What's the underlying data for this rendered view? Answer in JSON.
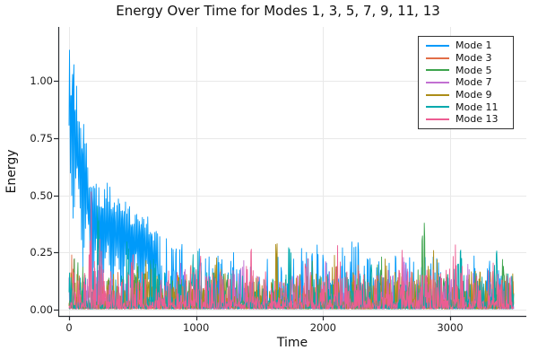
{
  "page": {
    "background": "#FFFFFF"
  },
  "colors": {
    "grid": "#E9E9E9",
    "axis": "#2A2E33",
    "text": "#111111"
  },
  "chart_data": {
    "type": "line",
    "title": "Energy Over Time for Modes 1, 3, 5, 7, 9, 11, 13",
    "xlabel": "Time",
    "ylabel": "Energy",
    "xlim": [
      0,
      3500
    ],
    "ylim": [
      0,
      1.22
    ],
    "grid": true,
    "legend": {
      "position": "top-right",
      "border_color": "#333333",
      "background": "#FFFFFF"
    },
    "x_ticks": [
      {
        "value": 0,
        "label": "0"
      },
      {
        "value": 1000,
        "label": "1000"
      },
      {
        "value": 2000,
        "label": "2000"
      },
      {
        "value": 3000,
        "label": "3000"
      }
    ],
    "y_ticks": [
      {
        "value": 0.0,
        "label": "0.00"
      },
      {
        "value": 0.25,
        "label": "0.25"
      },
      {
        "value": 0.5,
        "label": "0.50"
      },
      {
        "value": 0.75,
        "label": "0.75"
      },
      {
        "value": 1.0,
        "label": "1.00"
      }
    ],
    "series": [
      {
        "name": "Mode 1",
        "color": "#009AFA",
        "style": "decaying_oscillation",
        "seed": 11,
        "period": 22,
        "osc_until": 700,
        "base": 0.1,
        "peak": {
          "time": 20,
          "value": 1.19
        },
        "envelope": [
          [
            0,
            1.2
          ],
          [
            25,
            1.19
          ],
          [
            50,
            1.08
          ],
          [
            80,
            0.97
          ],
          [
            110,
            0.88
          ],
          [
            140,
            0.74
          ],
          [
            170,
            0.62
          ],
          [
            210,
            0.56
          ],
          [
            260,
            0.53
          ],
          [
            320,
            0.57
          ],
          [
            380,
            0.52
          ],
          [
            450,
            0.49
          ],
          [
            520,
            0.46
          ],
          [
            600,
            0.43
          ],
          [
            700,
            0.34
          ],
          [
            800,
            0.3
          ],
          [
            900,
            0.34
          ],
          [
            1000,
            0.27
          ],
          [
            1150,
            0.24
          ],
          [
            1300,
            0.27
          ],
          [
            1450,
            0.22
          ],
          [
            1600,
            0.24
          ],
          [
            1750,
            0.28
          ],
          [
            1900,
            0.31
          ],
          [
            2000,
            0.29
          ],
          [
            2100,
            0.26
          ],
          [
            2250,
            0.3
          ],
          [
            2400,
            0.24
          ],
          [
            2550,
            0.26
          ],
          [
            2700,
            0.23
          ],
          [
            2850,
            0.25
          ],
          [
            3000,
            0.22
          ],
          [
            3150,
            0.24
          ],
          [
            3300,
            0.22
          ],
          [
            3500,
            0.2
          ]
        ],
        "events": []
      },
      {
        "name": "Mode 3",
        "color": "#E26E47",
        "style": "noise",
        "seed": 23,
        "base": 0.13,
        "envelope": [
          [
            0,
            0.3
          ],
          [
            3500,
            0.19
          ]
        ],
        "events": [
          [
            40,
            0.17,
            50
          ],
          [
            420,
            0.07,
            60
          ],
          [
            950,
            0.07,
            50
          ],
          [
            1500,
            0.06,
            50
          ],
          [
            2250,
            0.08,
            50
          ],
          [
            2900,
            0.07,
            45
          ],
          [
            3350,
            0.06,
            40
          ]
        ]
      },
      {
        "name": "Mode 5",
        "color": "#3DA44D",
        "style": "noise",
        "seed": 37,
        "base": 0.14,
        "envelope": [
          [
            0,
            0.3
          ],
          [
            2800,
            0.42
          ],
          [
            3500,
            0.2
          ]
        ],
        "events": [
          [
            70,
            0.16,
            40
          ],
          [
            520,
            0.1,
            45
          ],
          [
            1250,
            0.1,
            40
          ],
          [
            1900,
            0.08,
            40
          ],
          [
            2450,
            0.1,
            40
          ],
          [
            2800,
            0.28,
            40
          ],
          [
            3420,
            0.14,
            25
          ]
        ]
      },
      {
        "name": "Mode 7",
        "color": "#C270D2",
        "style": "noise",
        "seed": 41,
        "base": 0.15,
        "envelope": [
          [
            0,
            0.25
          ],
          [
            3500,
            0.27
          ]
        ],
        "events": [
          [
            250,
            0.1,
            50
          ],
          [
            880,
            0.15,
            35
          ],
          [
            1350,
            0.13,
            35
          ],
          [
            2050,
            0.11,
            40
          ],
          [
            2650,
            0.14,
            35
          ],
          [
            3150,
            0.12,
            35
          ]
        ]
      },
      {
        "name": "Mode 9",
        "color": "#AC8D18",
        "style": "noise",
        "seed": 53,
        "base": 0.16,
        "envelope": [
          [
            0,
            0.26
          ],
          [
            1630,
            0.35
          ],
          [
            2870,
            0.37
          ],
          [
            3500,
            0.27
          ]
        ],
        "events": [
          [
            600,
            0.1,
            45
          ],
          [
            1150,
            0.14,
            35
          ],
          [
            1630,
            0.19,
            25
          ],
          [
            2100,
            0.1,
            40
          ],
          [
            2500,
            0.13,
            35
          ],
          [
            2870,
            0.21,
            30
          ],
          [
            3200,
            0.11,
            35
          ]
        ]
      },
      {
        "name": "Mode 11",
        "color": "#00A9AD",
        "style": "noise",
        "seed": 67,
        "base": 0.16,
        "envelope": [
          [
            0,
            0.28
          ],
          [
            225,
            0.57
          ],
          [
            1730,
            0.38
          ],
          [
            3500,
            0.3
          ]
        ],
        "events": [
          [
            225,
            0.41,
            18
          ],
          [
            470,
            0.21,
            25
          ],
          [
            640,
            0.16,
            35
          ],
          [
            1000,
            0.11,
            40
          ],
          [
            1730,
            0.22,
            20
          ],
          [
            2380,
            0.14,
            35
          ],
          [
            3080,
            0.19,
            30
          ],
          [
            3350,
            0.14,
            28
          ]
        ]
      },
      {
        "name": "Mode 13",
        "color": "#ED5D92",
        "style": "noise",
        "seed": 79,
        "base": 0.17,
        "envelope": [
          [
            0,
            0.28
          ],
          [
            175,
            0.64
          ],
          [
            240,
            0.43
          ],
          [
            3500,
            0.28
          ]
        ],
        "events": [
          [
            175,
            0.47,
            16
          ],
          [
            240,
            0.26,
            20
          ],
          [
            500,
            0.13,
            45
          ],
          [
            1000,
            0.11,
            50
          ],
          [
            1450,
            0.11,
            45
          ],
          [
            1900,
            0.1,
            45
          ],
          [
            2100,
            0.13,
            35
          ],
          [
            2600,
            0.11,
            45
          ],
          [
            3050,
            0.13,
            35
          ],
          [
            3300,
            0.11,
            40
          ]
        ]
      }
    ]
  }
}
